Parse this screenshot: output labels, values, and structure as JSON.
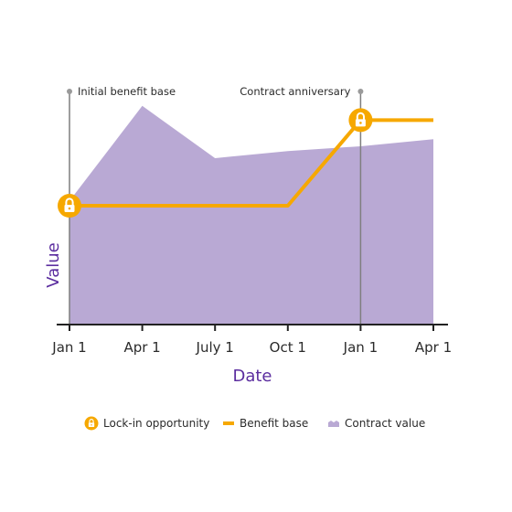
{
  "chart_data": {
    "type": "area",
    "title": "",
    "xlabel": "Date",
    "ylabel": "Value",
    "categories": [
      "Jan 1",
      "Apr 1",
      "July 1",
      "Oct 1",
      "Jan 1",
      "Apr 1"
    ],
    "ylim": [
      0,
      100
    ],
    "series": [
      {
        "name": "Contract value",
        "type": "area",
        "values": [
          52,
          92,
          70,
          73,
          75,
          78
        ],
        "color": "#b9a9d4"
      },
      {
        "name": "Benefit base",
        "type": "step-line",
        "values": [
          50,
          50,
          50,
          50,
          86,
          86
        ],
        "color": "#f6a800"
      }
    ],
    "lock_in_points": [
      {
        "category_index": 0,
        "value": 50
      },
      {
        "category_index": 4,
        "value": 86
      }
    ],
    "annotations": [
      {
        "text": "Initial benefit base",
        "category_index": 0
      },
      {
        "text": "Contract anniversary",
        "category_index": 4
      }
    ],
    "legend": {
      "placement": "bottom",
      "items": [
        {
          "label": "Lock-in opportunity",
          "icon": "lock-icon"
        },
        {
          "label": "Benefit base",
          "icon": "line-swatch"
        },
        {
          "label": "Contract value",
          "icon": "area-swatch"
        }
      ]
    },
    "colors": {
      "area": "#b9a9d4",
      "line": "#f6a800",
      "axis": "#222222",
      "annotation_line": "#7f7f7f",
      "axis_title": "#5b2d9f"
    }
  }
}
